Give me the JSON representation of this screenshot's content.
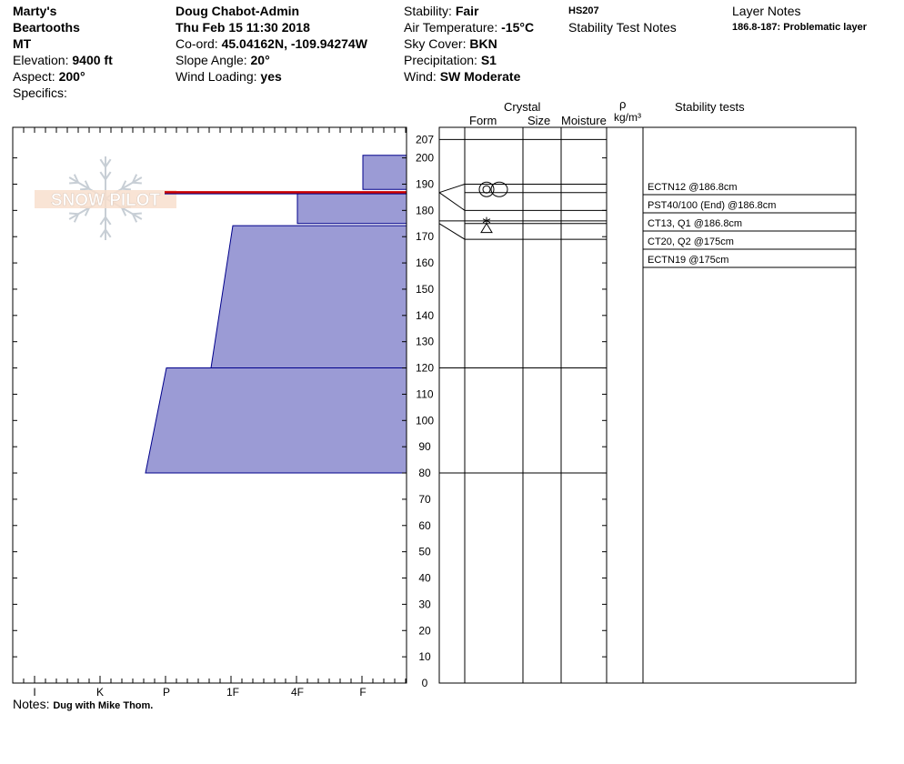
{
  "header": {
    "location": [
      "Marty's",
      "Beartooths",
      "MT"
    ],
    "elevation_label": "Elevation:",
    "elevation": "9400 ft",
    "aspect_label": "Aspect:",
    "aspect": "200°",
    "specifics_label": "Specifics:",
    "observer": "Doug Chabot-Admin",
    "datetime": "Thu Feb 15 11:30 2018",
    "coord_label": "Co-ord:",
    "coord": "45.04162N, -109.94274W",
    "slope_label": "Slope Angle:",
    "slope": "20°",
    "wind_loading_label": "Wind Loading:",
    "wind_loading": "yes",
    "stability_label": "Stability:",
    "stability": "Fair",
    "air_temp_label": "Air Temperature:",
    "air_temp": "-15°C",
    "sky_label": "Sky Cover:",
    "sky": "BKN",
    "precip_label": "Precipitation:",
    "precip": "S1",
    "wind_label": "Wind:",
    "wind": "SW Moderate",
    "hs": "HS207",
    "stability_notes_label": "Stability Test Notes",
    "layer_notes_label": "Layer Notes",
    "layer_note": "186.8-187: Problematic layer"
  },
  "columns": {
    "crystal": "Crystal",
    "form": "Form",
    "size": "Size",
    "moisture": "Moisture",
    "rho": "ρ",
    "density_unit": "kg/m³",
    "stability_tests": "Stability tests"
  },
  "notes_label": "Notes:",
  "notes": "Dug with Mike Thom.",
  "watermark": "SNOW PILOT",
  "colors": {
    "layer_fill": "#9b9bd5",
    "layer_stroke": "#00008b",
    "problem_line": "#cc0000"
  },
  "chart_data": {
    "type": "snow_profile",
    "x_categories": [
      "F",
      "4F",
      "1F",
      "P",
      "K",
      "I"
    ],
    "x_tick_labels": [
      "I",
      "K",
      "P",
      "1F",
      "4F",
      "F"
    ],
    "y_ticks": [
      0,
      10,
      20,
      30,
      40,
      50,
      60,
      70,
      80,
      90,
      100,
      110,
      120,
      130,
      140,
      150,
      160,
      170,
      180,
      190,
      200,
      207
    ],
    "y_label_max": 207,
    "ylim": [
      0,
      207
    ],
    "hardness_layers": [
      {
        "top": 201,
        "bottom": 188,
        "hardness": "F"
      },
      {
        "top": 186.8,
        "bottom": 175,
        "hardness": "4F"
      },
      {
        "top": 174.2,
        "bottom": 120,
        "hardness_top": "1F",
        "hardness_bottom": "1F+"
      },
      {
        "top": 120,
        "bottom": 80,
        "hardness_top": "P",
        "hardness_bottom": "P+"
      }
    ],
    "problematic_layer": [
      186.8,
      187
    ],
    "layer_boundaries": [
      207,
      190,
      186.8,
      180,
      176,
      175,
      169,
      120,
      80
    ],
    "crystal_symbols": [
      {
        "height": 188,
        "symbol": "rounded-faceted"
      },
      {
        "height": 174,
        "symbol": "precipitation-particles"
      }
    ],
    "stability_tests": [
      {
        "label": "ECTN12 @186.8cm"
      },
      {
        "label": "PST40/100 (End) @186.8cm"
      },
      {
        "label": "CT13, Q1 @186.8cm"
      },
      {
        "label": "CT20, Q2 @175cm"
      },
      {
        "label": "ECTN19 @175cm"
      }
    ]
  }
}
